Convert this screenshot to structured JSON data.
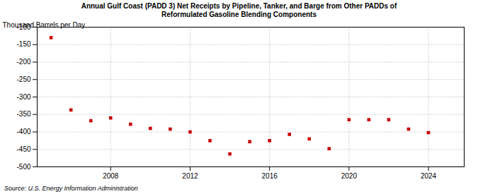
{
  "chart_data": {
    "type": "scatter",
    "title": "Annual Gulf Coast (PADD 3) Net Receipts by Pipeline, Tanker, and Barge from Other PADDs of\nReformulated Gasoline Blending Components",
    "ylabel": "Thousand Barrels per Day",
    "source": "Source: U.S. Energy Information Administration",
    "x": [
      2005,
      2006,
      2007,
      2008,
      2009,
      2010,
      2011,
      2012,
      2013,
      2014,
      2015,
      2016,
      2017,
      2018,
      2019,
      2020,
      2021,
      2022,
      2023,
      2024
    ],
    "values": [
      -130,
      -337,
      -368,
      -360,
      -378,
      -390,
      -392,
      -400,
      -425,
      -463,
      -428,
      -425,
      -407,
      -420,
      -448,
      -365,
      -365,
      -365,
      -392,
      -402
    ],
    "color": "#cc0000",
    "marker": "square",
    "xlim": [
      2004.3,
      2025.8
    ],
    "xticks": [
      2008,
      2012,
      2016,
      2020,
      2024
    ],
    "ylim": [
      -500,
      -100
    ],
    "yticks": [
      -500,
      -450,
      -400,
      -350,
      -300,
      -250,
      -200,
      -150,
      -100
    ],
    "grid": true
  }
}
